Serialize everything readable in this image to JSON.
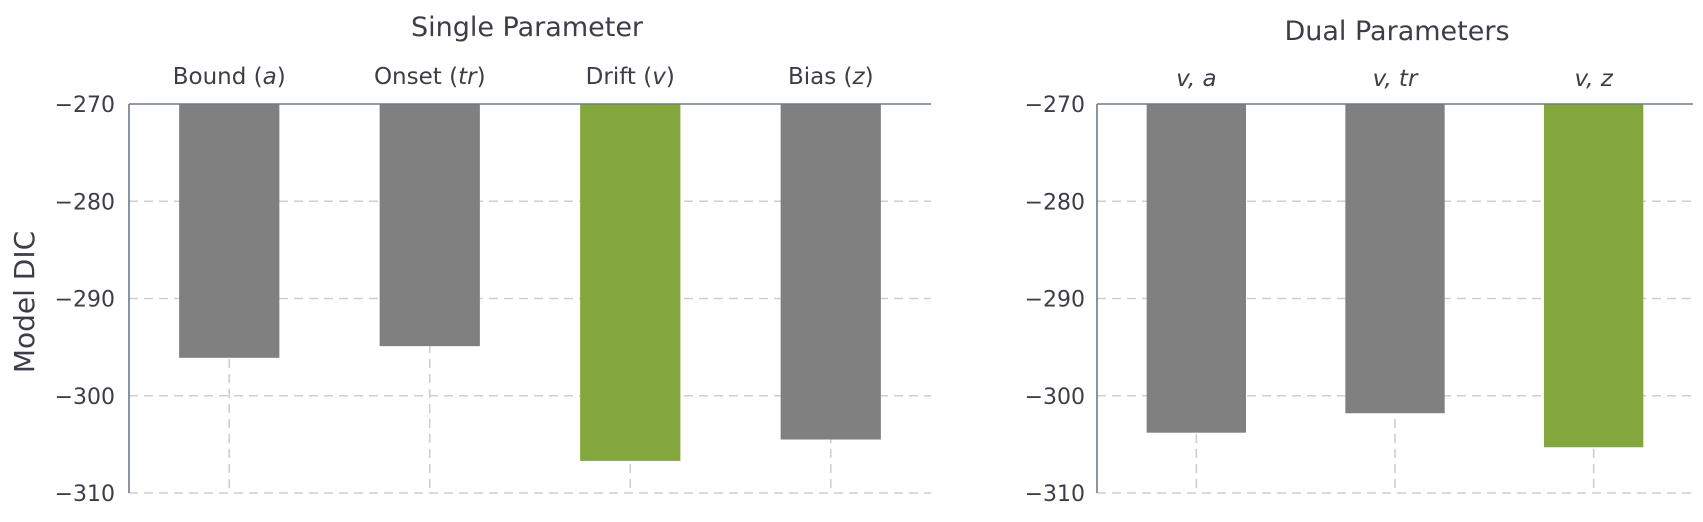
{
  "colors": {
    "highlight": "#84a73d",
    "default": "#808080"
  },
  "chart_data": [
    {
      "type": "bar",
      "title": "Single Parameter",
      "ylabel": "Model DIC",
      "ylim": [
        -310,
        -270
      ],
      "yticks": [
        -270,
        -280,
        -290,
        -300,
        -310
      ],
      "ytick_labels": [
        "−270",
        "−280",
        "−290",
        "−300",
        "−310"
      ],
      "categories": [
        {
          "text": "Bound (",
          "sym": "a",
          "close": ")"
        },
        {
          "text": "Onset (",
          "sym": "tr",
          "close": ")"
        },
        {
          "text": "Drift (",
          "sym": "v",
          "close": ")"
        },
        {
          "text": "Bias (",
          "sym": "z",
          "close": ")"
        }
      ],
      "values": [
        -296.1,
        -294.9,
        -306.7,
        -304.5
      ],
      "highlight": [
        false,
        false,
        true,
        false
      ],
      "grid": true,
      "category_axis_position": "top"
    },
    {
      "type": "bar",
      "title": "Dual Parameters",
      "ylabel": "",
      "ylim": [
        -310,
        -270
      ],
      "yticks": [
        -270,
        -280,
        -290,
        -300,
        -310
      ],
      "ytick_labels": [
        "−270",
        "−280",
        "−290",
        "−300",
        "−310"
      ],
      "categories": [
        {
          "text": "",
          "sym": "v, a",
          "close": ""
        },
        {
          "text": "",
          "sym": "v, tr",
          "close": ""
        },
        {
          "text": "",
          "sym": "v, z",
          "close": ""
        }
      ],
      "values": [
        -303.8,
        -301.8,
        -305.3
      ],
      "highlight": [
        false,
        false,
        true
      ],
      "grid": true,
      "category_axis_position": "top"
    }
  ]
}
